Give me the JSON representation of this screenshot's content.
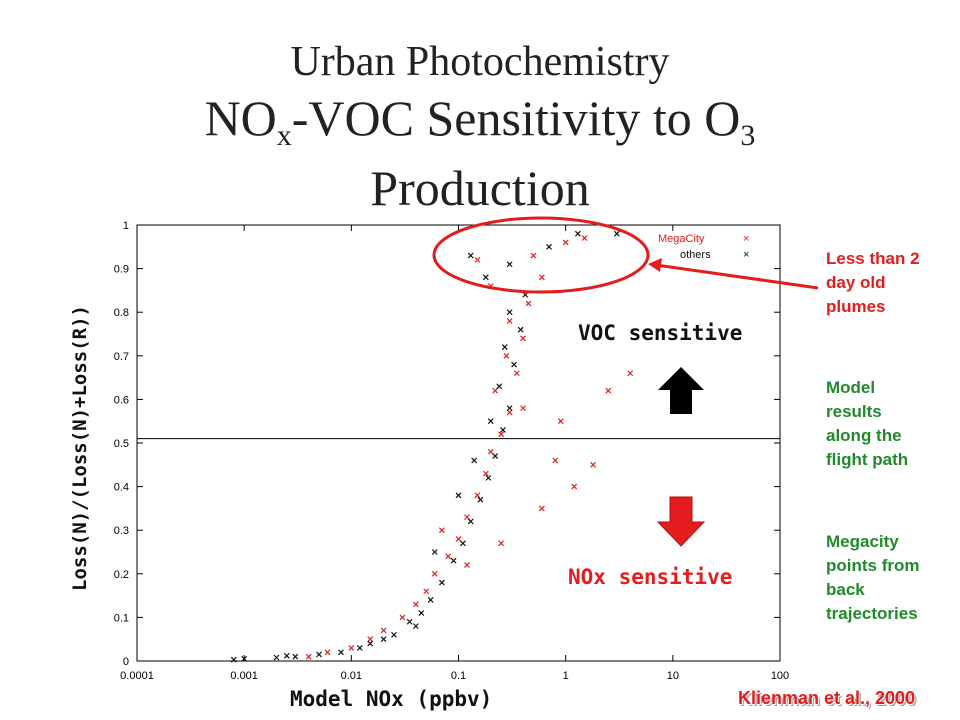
{
  "title": {
    "line1": "Urban Photochemistry",
    "line2_a": "NO",
    "line2_sub_a": "x",
    "line2_b": "-VOC Sensitivity to O",
    "line2_sub_b": "3",
    "line3": "Production"
  },
  "notes": {
    "plumes": [
      "Less than 2",
      "day old",
      "plumes"
    ],
    "model": [
      "Model",
      "results",
      "along the",
      "flight path"
    ],
    "megacity": [
      "Megacity",
      "points from",
      "back",
      "trajectories"
    ],
    "credit": "Klienman et al., 2000"
  },
  "colors": {
    "red": "#e31d1d",
    "green": "#1f8b2b",
    "black": "#111111"
  },
  "chart_data": {
    "type": "scatter",
    "xlabel": "Model NOx (ppbv)",
    "ylabel": "Loss(N)/(Loss(N)+Loss(R))",
    "x_scale": "log",
    "xlim": [
      0.0001,
      100
    ],
    "ylim": [
      0,
      1
    ],
    "x_ticks": [
      "0.0001",
      "0.001",
      "0.01",
      "0.1",
      "1",
      "10",
      "100"
    ],
    "y_ticks": [
      "0",
      "0.1",
      "0.2",
      "0.3",
      "0.4",
      "0.5",
      "0.6",
      "0.7",
      "0.8",
      "0.9",
      "1"
    ],
    "reference_line_y": 0.51,
    "legend": {
      "position": "top-right",
      "entries": [
        "MegaCity",
        "others"
      ]
    },
    "annotations": {
      "up": "VOC sensitive",
      "down": "NOx sensitive"
    },
    "series": [
      {
        "name": "MegaCity",
        "color": "#e31d1d",
        "points": [
          [
            0.004,
            0.01
          ],
          [
            0.006,
            0.02
          ],
          [
            0.01,
            0.03
          ],
          [
            0.015,
            0.05
          ],
          [
            0.02,
            0.07
          ],
          [
            0.03,
            0.1
          ],
          [
            0.04,
            0.13
          ],
          [
            0.05,
            0.16
          ],
          [
            0.06,
            0.2
          ],
          [
            0.08,
            0.24
          ],
          [
            0.1,
            0.28
          ],
          [
            0.12,
            0.33
          ],
          [
            0.15,
            0.38
          ],
          [
            0.18,
            0.43
          ],
          [
            0.2,
            0.48
          ],
          [
            0.25,
            0.52
          ],
          [
            0.3,
            0.57
          ],
          [
            0.22,
            0.62
          ],
          [
            0.35,
            0.66
          ],
          [
            0.28,
            0.7
          ],
          [
            0.4,
            0.74
          ],
          [
            0.3,
            0.78
          ],
          [
            0.45,
            0.82
          ],
          [
            0.2,
            0.86
          ],
          [
            0.6,
            0.88
          ],
          [
            0.15,
            0.92
          ],
          [
            1.0,
            0.96
          ],
          [
            0.5,
            0.93
          ],
          [
            1.5,
            0.97
          ],
          [
            0.4,
            0.58
          ],
          [
            0.8,
            0.46
          ],
          [
            1.2,
            0.4
          ],
          [
            0.6,
            0.35
          ],
          [
            0.9,
            0.55
          ],
          [
            1.8,
            0.45
          ],
          [
            4.0,
            0.66
          ],
          [
            2.5,
            0.62
          ],
          [
            0.07,
            0.3
          ],
          [
            0.12,
            0.22
          ],
          [
            0.25,
            0.27
          ]
        ]
      },
      {
        "name": "others",
        "color": "#111111",
        "points": [
          [
            0.0008,
            0.003
          ],
          [
            0.001,
            0.005
          ],
          [
            0.002,
            0.008
          ],
          [
            0.003,
            0.01
          ],
          [
            0.005,
            0.015
          ],
          [
            0.008,
            0.02
          ],
          [
            0.012,
            0.03
          ],
          [
            0.02,
            0.05
          ],
          [
            0.025,
            0.06
          ],
          [
            0.035,
            0.09
          ],
          [
            0.045,
            0.11
          ],
          [
            0.055,
            0.14
          ],
          [
            0.07,
            0.18
          ],
          [
            0.09,
            0.23
          ],
          [
            0.11,
            0.27
          ],
          [
            0.13,
            0.32
          ],
          [
            0.16,
            0.37
          ],
          [
            0.19,
            0.42
          ],
          [
            0.22,
            0.47
          ],
          [
            0.26,
            0.53
          ],
          [
            0.3,
            0.58
          ],
          [
            0.24,
            0.63
          ],
          [
            0.33,
            0.68
          ],
          [
            0.27,
            0.72
          ],
          [
            0.38,
            0.76
          ],
          [
            0.3,
            0.8
          ],
          [
            0.42,
            0.84
          ],
          [
            0.18,
            0.88
          ],
          [
            0.3,
            0.91
          ],
          [
            0.13,
            0.93
          ],
          [
            0.7,
            0.95
          ],
          [
            1.3,
            0.98
          ],
          [
            3.0,
            0.98
          ],
          [
            0.06,
            0.25
          ],
          [
            0.1,
            0.38
          ],
          [
            0.14,
            0.46
          ],
          [
            0.2,
            0.55
          ],
          [
            0.015,
            0.04
          ],
          [
            0.0025,
            0.012
          ],
          [
            0.04,
            0.08
          ]
        ]
      }
    ]
  }
}
